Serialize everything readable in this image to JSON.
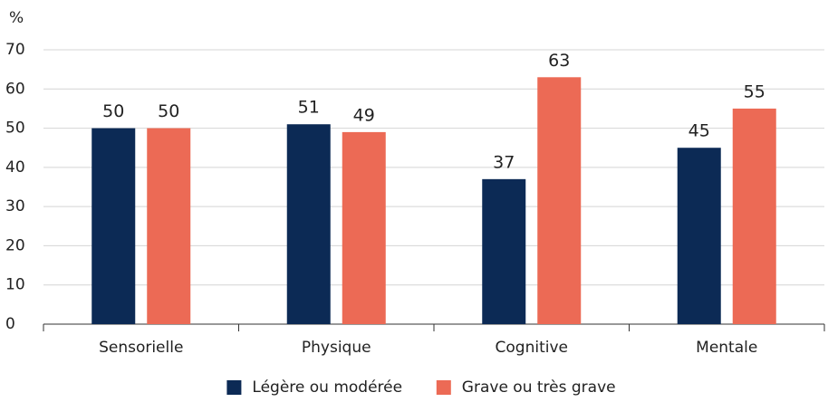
{
  "chart_data": {
    "type": "bar",
    "y_unit_label": "%",
    "categories": [
      "Sensorielle",
      "Physique",
      "Cognitive",
      "Mentale"
    ],
    "series": [
      {
        "name": "Légère ou modérée",
        "color": "#0c2a55",
        "values": [
          50,
          51,
          37,
          45
        ]
      },
      {
        "name": "Grave ou très grave",
        "color": "#ec6a55",
        "values": [
          50,
          49,
          63,
          55
        ]
      }
    ],
    "ylim": [
      0,
      70
    ],
    "yticks": [
      0,
      10,
      20,
      30,
      40,
      50,
      60,
      70
    ],
    "grid": true,
    "legend": "bottom"
  }
}
